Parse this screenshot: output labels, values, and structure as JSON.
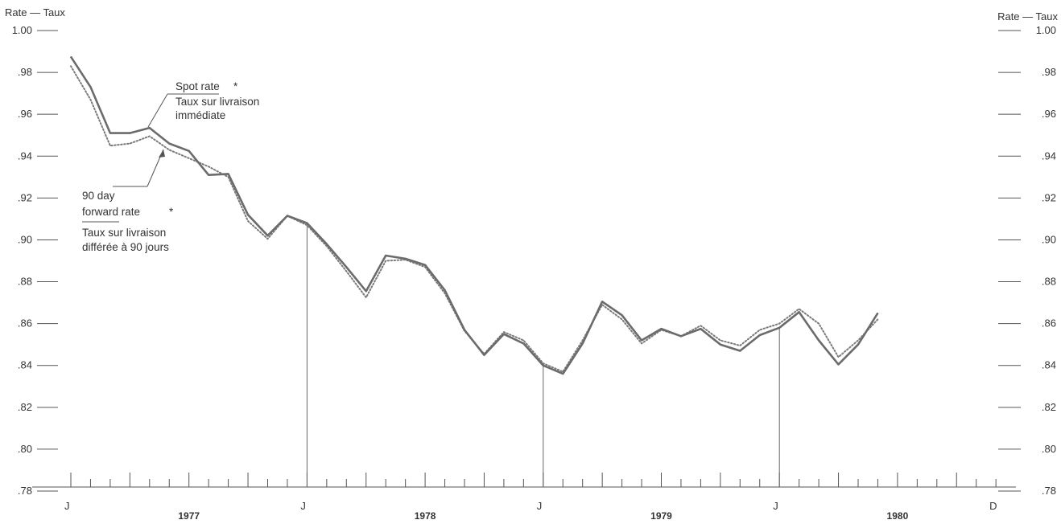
{
  "chart_data": {
    "type": "line",
    "left_axis_title": "Rate — Taux",
    "right_axis_title": "Rate — Taux",
    "ylim": [
      0.78,
      1.0
    ],
    "y_ticks": [
      "1.00",
      ".98",
      ".96",
      ".94",
      ".92",
      ".90",
      ".88",
      ".86",
      ".84",
      ".82",
      ".80",
      ".78"
    ],
    "x_month_labels": [
      "J",
      "J",
      "J",
      "J",
      "D"
    ],
    "years": [
      "1977",
      "1978",
      "1979",
      "1980"
    ],
    "x_months": 48,
    "series": [
      {
        "name": "Spot rate",
        "style": "solid",
        "color": "#6b6b6b",
        "points": [
          [
            0,
            0.9875
          ],
          [
            1,
            0.973
          ],
          [
            2,
            0.951
          ],
          [
            3,
            0.951
          ],
          [
            4,
            0.9535
          ],
          [
            5,
            0.946
          ],
          [
            6,
            0.9425
          ],
          [
            7,
            0.931
          ],
          [
            8,
            0.9315
          ],
          [
            9,
            0.912
          ],
          [
            10,
            0.902
          ],
          [
            11,
            0.9115
          ],
          [
            12,
            0.908
          ],
          [
            13,
            0.898
          ],
          [
            14,
            0.887
          ],
          [
            15,
            0.8755
          ],
          [
            16,
            0.8925
          ],
          [
            17,
            0.891
          ],
          [
            18,
            0.888
          ],
          [
            19,
            0.876
          ],
          [
            20,
            0.857
          ],
          [
            21,
            0.845
          ],
          [
            22,
            0.855
          ],
          [
            23,
            0.8505
          ],
          [
            24,
            0.84
          ],
          [
            25,
            0.836
          ],
          [
            26,
            0.8505
          ],
          [
            27,
            0.8705
          ],
          [
            28,
            0.864
          ],
          [
            29,
            0.852
          ],
          [
            30,
            0.8575
          ],
          [
            31,
            0.854
          ],
          [
            32,
            0.8575
          ],
          [
            33,
            0.85
          ],
          [
            34,
            0.847
          ],
          [
            35,
            0.8545
          ],
          [
            36,
            0.858
          ],
          [
            37,
            0.8655
          ],
          [
            38,
            0.852
          ],
          [
            39,
            0.8405
          ],
          [
            40,
            0.85
          ],
          [
            41,
            0.865
          ]
        ]
      },
      {
        "name": "90 day forward rate",
        "style": "dotted",
        "color": "#7a7a7a",
        "points": [
          [
            0,
            0.983
          ],
          [
            1,
            0.967
          ],
          [
            2,
            0.945
          ],
          [
            3,
            0.946
          ],
          [
            4,
            0.9495
          ],
          [
            5,
            0.943
          ],
          [
            6,
            0.939
          ],
          [
            7,
            0.935
          ],
          [
            8,
            0.93
          ],
          [
            9,
            0.909
          ],
          [
            10,
            0.9005
          ],
          [
            11,
            0.9115
          ],
          [
            12,
            0.907
          ],
          [
            13,
            0.897
          ],
          [
            14,
            0.885
          ],
          [
            15,
            0.8725
          ],
          [
            16,
            0.89
          ],
          [
            17,
            0.8905
          ],
          [
            18,
            0.887
          ],
          [
            19,
            0.8745
          ],
          [
            20,
            0.8565
          ],
          [
            21,
            0.8455
          ],
          [
            22,
            0.856
          ],
          [
            23,
            0.852
          ],
          [
            24,
            0.841
          ],
          [
            25,
            0.837
          ],
          [
            26,
            0.852
          ],
          [
            27,
            0.869
          ],
          [
            28,
            0.862
          ],
          [
            29,
            0.8505
          ],
          [
            30,
            0.857
          ],
          [
            31,
            0.854
          ],
          [
            32,
            0.859
          ],
          [
            33,
            0.852
          ],
          [
            34,
            0.8495
          ],
          [
            35,
            0.857
          ],
          [
            36,
            0.86
          ],
          [
            37,
            0.867
          ],
          [
            38,
            0.86
          ],
          [
            39,
            0.844
          ],
          [
            40,
            0.852
          ],
          [
            41,
            0.862
          ]
        ]
      }
    ],
    "annotations": {
      "spot_title": "Spot rate",
      "spot_star": "*",
      "spot_line1": "Taux sur livraison",
      "spot_line2": "immédiate",
      "fwd_line1": "90 day",
      "fwd_line2": "forward rate",
      "fwd_star": "*",
      "fwd_line3": "Taux sur livraison",
      "fwd_line4": "différée à 90 jours"
    },
    "grid": false
  }
}
